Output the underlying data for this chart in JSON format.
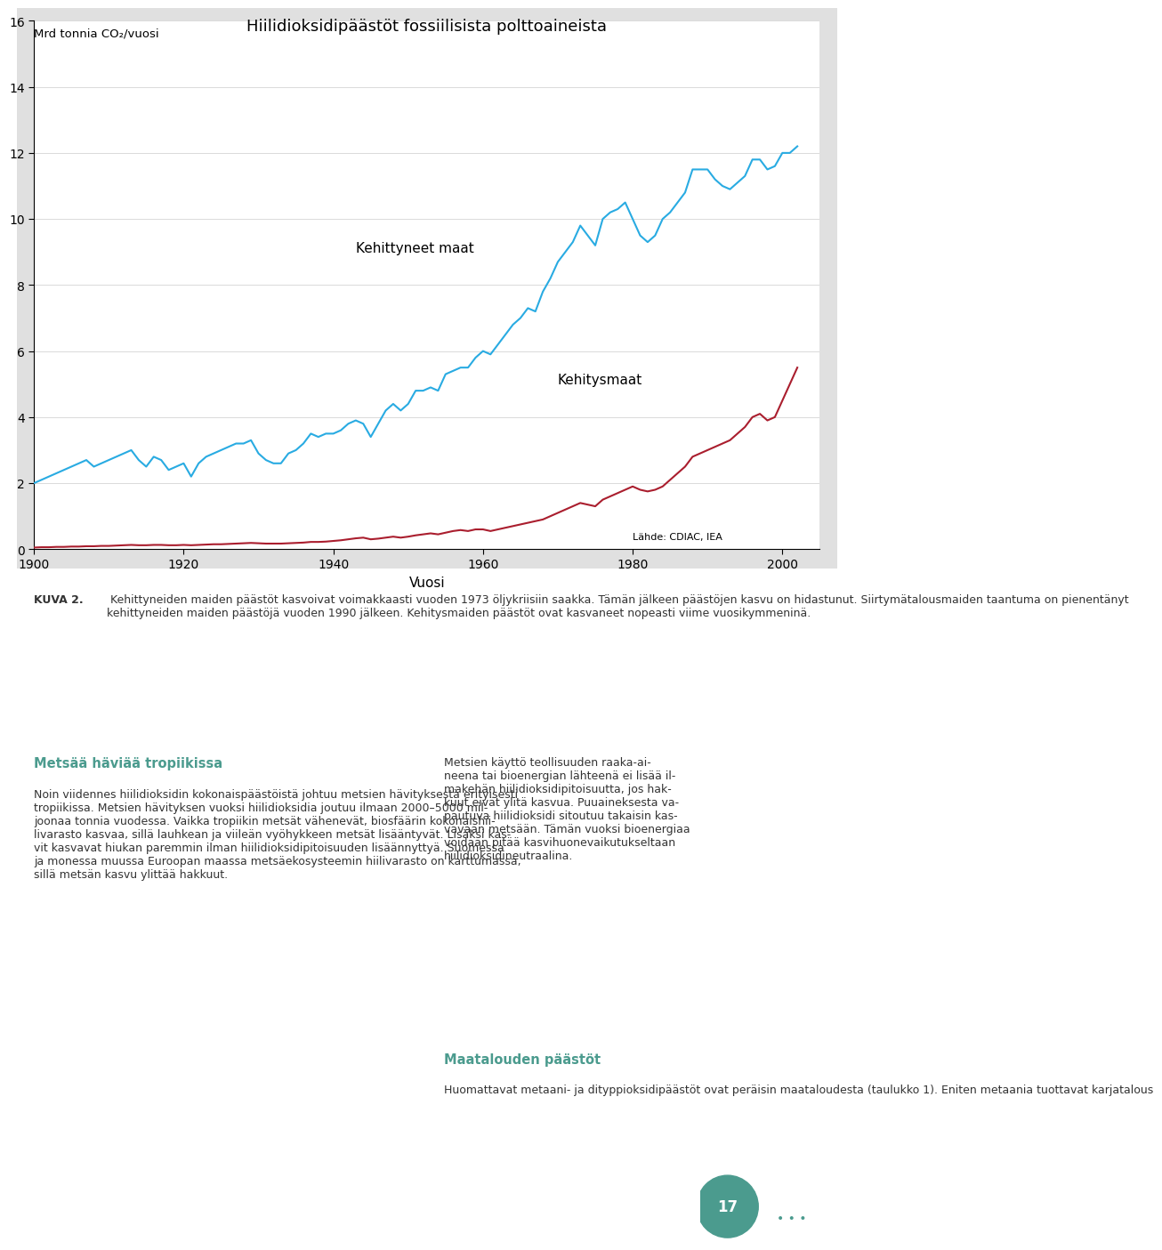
{
  "title": "Hiilidioksidipäästöt fossiilisista polttoaineista",
  "ylabel": "Mrd tonnia CO₂/vuosi",
  "xlabel": "Vuosi",
  "source_label": "Lähde: CDIAC, IEA",
  "label_developed": "Kehittyneet maat",
  "label_developing": "Kehitysmaat",
  "ylim": [
    0,
    16
  ],
  "yticks": [
    0,
    2,
    4,
    6,
    8,
    10,
    12,
    14,
    16
  ],
  "xticks": [
    1900,
    1920,
    1940,
    1960,
    1980,
    2000
  ],
  "color_developed": "#29ABE2",
  "color_developing": "#AA1E2E",
  "bg_chart": "#FFFFFF",
  "bg_outer": "#E8E8E8",
  "page_bg": "#FFFFFF",
  "developed_years": [
    1900,
    1901,
    1902,
    1903,
    1904,
    1905,
    1906,
    1907,
    1908,
    1909,
    1910,
    1911,
    1912,
    1913,
    1914,
    1915,
    1916,
    1917,
    1918,
    1919,
    1920,
    1921,
    1922,
    1923,
    1924,
    1925,
    1926,
    1927,
    1928,
    1929,
    1930,
    1931,
    1932,
    1933,
    1934,
    1935,
    1936,
    1937,
    1938,
    1939,
    1940,
    1941,
    1942,
    1943,
    1944,
    1945,
    1946,
    1947,
    1948,
    1949,
    1950,
    1951,
    1952,
    1953,
    1954,
    1955,
    1956,
    1957,
    1958,
    1959,
    1960,
    1961,
    1962,
    1963,
    1964,
    1965,
    1966,
    1967,
    1968,
    1969,
    1970,
    1971,
    1972,
    1973,
    1974,
    1975,
    1976,
    1977,
    1978,
    1979,
    1980,
    1981,
    1982,
    1983,
    1984,
    1985,
    1986,
    1987,
    1988,
    1989,
    1990,
    1991,
    1992,
    1993,
    1994,
    1995,
    1996,
    1997,
    1998,
    1999,
    2000,
    2001,
    2002
  ],
  "developed_values": [
    2.0,
    2.1,
    2.2,
    2.3,
    2.4,
    2.5,
    2.6,
    2.7,
    2.5,
    2.6,
    2.7,
    2.8,
    2.9,
    3.0,
    2.7,
    2.5,
    2.8,
    2.7,
    2.4,
    2.5,
    2.6,
    2.2,
    2.6,
    2.8,
    2.9,
    3.0,
    3.1,
    3.2,
    3.2,
    3.3,
    2.9,
    2.7,
    2.6,
    2.6,
    2.9,
    3.0,
    3.2,
    3.5,
    3.4,
    3.5,
    3.5,
    3.6,
    3.8,
    3.9,
    3.8,
    3.4,
    3.8,
    4.2,
    4.4,
    4.2,
    4.4,
    4.8,
    4.8,
    4.9,
    4.8,
    5.3,
    5.4,
    5.5,
    5.5,
    5.8,
    6.0,
    5.9,
    6.2,
    6.5,
    6.8,
    7.0,
    7.3,
    7.2,
    7.8,
    8.2,
    8.7,
    9.0,
    9.3,
    9.8,
    9.5,
    9.2,
    10.0,
    10.2,
    10.3,
    10.5,
    10.0,
    9.5,
    9.3,
    9.5,
    10.0,
    10.2,
    10.5,
    10.8,
    11.5,
    11.5,
    11.5,
    11.2,
    11.0,
    10.9,
    11.1,
    11.3,
    11.8,
    11.8,
    11.5,
    11.6,
    12.0,
    12.0,
    12.2
  ],
  "developing_years": [
    1900,
    1901,
    1902,
    1903,
    1904,
    1905,
    1906,
    1907,
    1908,
    1909,
    1910,
    1911,
    1912,
    1913,
    1914,
    1915,
    1916,
    1917,
    1918,
    1919,
    1920,
    1921,
    1922,
    1923,
    1924,
    1925,
    1926,
    1927,
    1928,
    1929,
    1930,
    1931,
    1932,
    1933,
    1934,
    1935,
    1936,
    1937,
    1938,
    1939,
    1940,
    1941,
    1942,
    1943,
    1944,
    1945,
    1946,
    1947,
    1948,
    1949,
    1950,
    1951,
    1952,
    1953,
    1954,
    1955,
    1956,
    1957,
    1958,
    1959,
    1960,
    1961,
    1962,
    1963,
    1964,
    1965,
    1966,
    1967,
    1968,
    1969,
    1970,
    1971,
    1972,
    1973,
    1974,
    1975,
    1976,
    1977,
    1978,
    1979,
    1980,
    1981,
    1982,
    1983,
    1984,
    1985,
    1986,
    1987,
    1988,
    1989,
    1990,
    1991,
    1992,
    1993,
    1994,
    1995,
    1996,
    1997,
    1998,
    1999,
    2000,
    2001,
    2002
  ],
  "developing_values": [
    0.05,
    0.06,
    0.06,
    0.07,
    0.07,
    0.08,
    0.08,
    0.09,
    0.09,
    0.1,
    0.1,
    0.11,
    0.12,
    0.13,
    0.12,
    0.12,
    0.13,
    0.13,
    0.12,
    0.12,
    0.13,
    0.12,
    0.13,
    0.14,
    0.15,
    0.15,
    0.16,
    0.17,
    0.18,
    0.19,
    0.18,
    0.17,
    0.17,
    0.17,
    0.18,
    0.19,
    0.2,
    0.22,
    0.22,
    0.23,
    0.25,
    0.27,
    0.3,
    0.33,
    0.35,
    0.3,
    0.32,
    0.35,
    0.38,
    0.35,
    0.38,
    0.42,
    0.45,
    0.48,
    0.45,
    0.5,
    0.55,
    0.58,
    0.55,
    0.6,
    0.6,
    0.55,
    0.6,
    0.65,
    0.7,
    0.75,
    0.8,
    0.85,
    0.9,
    1.0,
    1.1,
    1.2,
    1.3,
    1.4,
    1.35,
    1.3,
    1.5,
    1.6,
    1.7,
    1.8,
    1.9,
    1.8,
    1.75,
    1.8,
    1.9,
    2.1,
    2.3,
    2.5,
    2.8,
    2.9,
    3.0,
    3.1,
    3.2,
    3.3,
    3.5,
    3.7,
    4.0,
    4.1,
    3.9,
    4.0,
    4.5,
    5.0,
    5.5
  ],
  "kuva_text": "KUVA 2.",
  "kuva_body": " Kehittyneiden maiden päästöt kasvoivat voimakkaasti vuoden 1973 öljykriisiin saakka. Tämän jälkeen päästöjen kasvu on hidastunut. Siirtymätalousmaiden taantuma on pienentänyt kehittyneiden maiden päästöjä vuoden 1990 jälkeen. Kehitysmaiden päästöt ovat kasvaneet nopeasti viime vuosikymmeninä.",
  "section_title": "Metsää häviää tropiikissa",
  "section_body_left": "Noin viidennes hiilidioksidin kokonaispäästöistä johtuu metsien hävityksestä erityisesti tropiikissa. Metsien hävityksen vuoksi hiilidioksidia joutuu ilmaan 2000–5000 miljoonaa tonnia vuodessa. Vaikka tropiikin metsät vähenevät, biosfäärin kokonaishiilivara sto kasvaa, sillä lauhkean ja viileän vyöhykkeen metsät lisääntyvät. Lisäksi kasvit kasvavat hiukan paremmin ilman hiilidioksidipitoisuuden lisäännyttyä. Suomessa ja monessa muussa Euroopan maassa metsäekosysteemin hiilivarasto on karttumassa, sillä metsän kasvu ylittää hakkuut.",
  "section_body_right": "Metsien käyttö teollisuuden raaka-aineena tai bioenergian lähteenä ei lisää ilmakehän hiilidioksidipitoisuutta, jos hakkuut eivät ylitä kasvua. Puuaineksesta vapautuva hiilidioksidi sitoutuu takaisin kasvavaan metsään. Tämän vuoksi bioenergiaa voidaan pitää kasvihuonevaikutukseltaan hiilidioksidineutraalina.",
  "section2_title": "Maatalouden päästöt",
  "section2_body": "Huomattavat metaani- ja dityppioksidipäästöt ovat peräisin maataloudesta (taulukko 1). Eniten metaania tuottavat karjatalous",
  "page_number": "17"
}
